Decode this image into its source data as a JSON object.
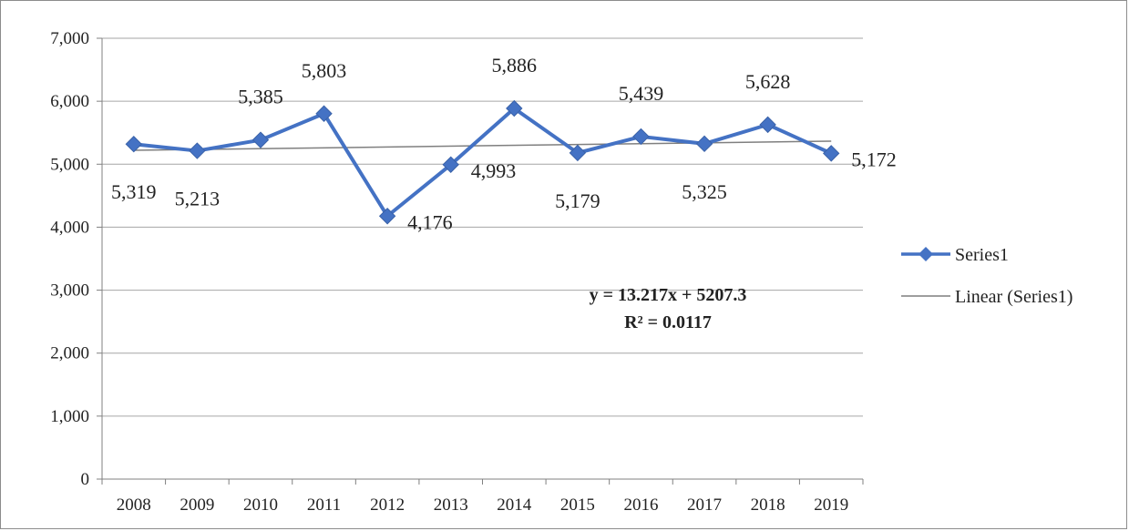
{
  "chart_data": {
    "type": "line",
    "categories": [
      "2008",
      "2009",
      "2010",
      "2011",
      "2012",
      "2013",
      "2014",
      "2015",
      "2016",
      "2017",
      "2018",
      "2019"
    ],
    "series": [
      {
        "name": "Series1",
        "values": [
          5319,
          5213,
          5385,
          5803,
          4176,
          4993,
          5886,
          5179,
          5439,
          5325,
          5628,
          5172
        ],
        "data_labels": [
          "5,319",
          "5,213",
          "5,385",
          "5,803",
          "4,176",
          "4,993",
          "5,886",
          "5,179",
          "5,439",
          "5,325",
          "5,628",
          "5,172"
        ],
        "color": "#4472C4",
        "marker": "diamond"
      }
    ],
    "trendline": {
      "name": "Linear (Series1)",
      "type": "linear",
      "slope": 13.217,
      "intercept": 5207.3,
      "color": "#7f7f7f",
      "equation": "y = 13.217x + 5207.3",
      "r_squared": "R² = 0.0117"
    },
    "ylim": [
      0,
      7000
    ],
    "yticks": [
      0,
      1000,
      2000,
      3000,
      4000,
      5000,
      6000,
      7000
    ],
    "ytick_labels": [
      "0",
      "1,000",
      "2,000",
      "3,000",
      "4,000",
      "5,000",
      "6,000",
      "7,000"
    ],
    "grid": true,
    "legend_position": "right"
  }
}
